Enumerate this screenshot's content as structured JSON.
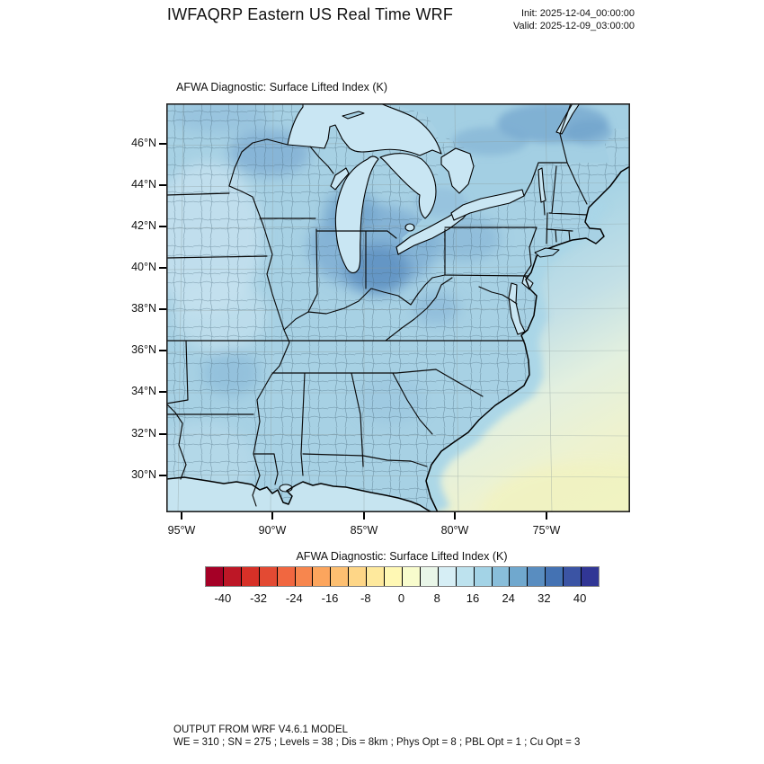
{
  "header": {
    "title": "IWFAQRP Eastern US Real Time WRF",
    "init": "Init: 2025-12-04_00:00:00",
    "valid": "Valid: 2025-12-09_03:00:00"
  },
  "map": {
    "title": "AFWA Diagnostic: Surface Lifted Index   (K)",
    "lat_ticks": [
      "46°N",
      "44°N",
      "42°N",
      "40°N",
      "38°N",
      "36°N",
      "34°N",
      "32°N",
      "30°N"
    ],
    "lon_ticks": [
      "95°W",
      "90°W",
      "85°W",
      "80°W",
      "75°W"
    ]
  },
  "colorbar": {
    "title": "AFWA Diagnostic: Surface Lifted Index  (K)",
    "tick_labels": [
      "-40",
      "-32",
      "-24",
      "-16",
      "-8",
      "0",
      "8",
      "16",
      "24",
      "32",
      "40"
    ],
    "range": [
      -44,
      44
    ],
    "interval": 4,
    "colors": [
      "#A50026",
      "#BD1726",
      "#D73027",
      "#E34A33",
      "#F16740",
      "#F7864E",
      "#FCA55D",
      "#FDBF71",
      "#FED687",
      "#FEE99D",
      "#FFF8B4",
      "#F8FCCD",
      "#E9F6E8",
      "#D6EEF5",
      "#BDE2EE",
      "#A3D3E6",
      "#89BEDA",
      "#70A8CE",
      "#598DC0",
      "#4472B3",
      "#3B54A4",
      "#313695"
    ]
  },
  "footer": {
    "line1": "OUTPUT FROM WRF V4.6.1 MODEL",
    "line2": "WE = 310 ; SN = 275 ; Levels = 38 ; Dis = 8km ; Phys Opt = 8 ; PBL Opt = 1 ; Cu Opt = 3"
  },
  "map_colors": {
    "land": "#A7D1E4",
    "land_light": "#C4E1EE",
    "land_dark": "#7FAED3",
    "land_darker": "#5F92C2",
    "lake": "#C9E6F3",
    "gulf": "#C6E4F0",
    "ocean_near": "#A6D3E5",
    "ocean_mid": "#C2DFE6",
    "ocean_pale": "#E3F0DF",
    "ocean_yellow": "#F1F3C2",
    "boundary": "#000000"
  }
}
